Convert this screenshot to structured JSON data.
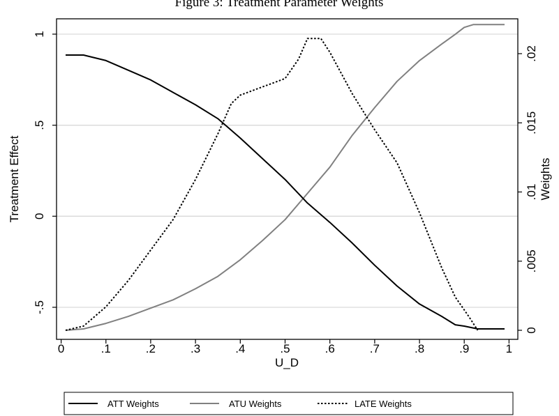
{
  "chart_data": {
    "type": "line",
    "title": "Figure 3: Treatment Parameter Weights",
    "xlabel": "U_D",
    "ylabel_left": "Treatment Effect",
    "ylabel_right": "Weights",
    "xlim": [
      0,
      1
    ],
    "ylim_left": [
      -0.62,
      1.05
    ],
    "ylim_right": [
      0,
      0.0225
    ],
    "x_ticks": [
      0,
      0.1,
      0.2,
      0.3,
      0.4,
      0.5,
      0.6,
      0.7,
      0.8,
      0.9,
      1
    ],
    "x_tick_labels": [
      "0",
      ".1",
      ".2",
      ".3",
      ".4",
      ".5",
      ".6",
      ".7",
      ".8",
      ".9",
      "1"
    ],
    "y_left_ticks": [
      -0.5,
      0,
      0.5,
      1
    ],
    "y_left_tick_labels": [
      "-.5",
      "0",
      ".5",
      "1"
    ],
    "y_right_ticks": [
      0,
      0.005,
      0.01,
      0.015,
      0.02
    ],
    "y_right_tick_labels": [
      "0",
      ".005",
      ".01",
      ".015",
      ".02"
    ],
    "grid": true,
    "legend_position": "bottom",
    "series": [
      {
        "name": "ATT Weights",
        "axis": "right",
        "color": "#000000",
        "dash": "solid",
        "x": [
          0.01,
          0.05,
          0.1,
          0.15,
          0.2,
          0.25,
          0.3,
          0.35,
          0.4,
          0.45,
          0.5,
          0.55,
          0.6,
          0.65,
          0.7,
          0.75,
          0.8,
          0.85,
          0.88,
          0.9,
          0.93,
          0.95,
          0.99
        ],
        "y": [
          0.0199,
          0.0199,
          0.0195,
          0.0188,
          0.0181,
          0.0172,
          0.0163,
          0.0153,
          0.0139,
          0.0124,
          0.0109,
          0.0092,
          0.0078,
          0.0063,
          0.0047,
          0.0032,
          0.0019,
          0.001,
          0.0004,
          0.0003,
          0.0001,
          0.0001,
          0.0001
        ]
      },
      {
        "name": "ATU Weights",
        "axis": "right",
        "color": "#808080",
        "dash": "solid",
        "x": [
          0.01,
          0.05,
          0.1,
          0.15,
          0.2,
          0.25,
          0.3,
          0.35,
          0.4,
          0.45,
          0.5,
          0.55,
          0.6,
          0.65,
          0.7,
          0.75,
          0.8,
          0.85,
          0.88,
          0.9,
          0.92,
          0.95,
          0.99
        ],
        "y": [
          0.0,
          0.0001,
          0.0005,
          0.001,
          0.0016,
          0.0022,
          0.003,
          0.0039,
          0.0051,
          0.0065,
          0.008,
          0.0099,
          0.0118,
          0.0141,
          0.0161,
          0.018,
          0.0195,
          0.0207,
          0.0214,
          0.0219,
          0.0221,
          0.0221,
          0.0221
        ]
      },
      {
        "name": "LATE Weights",
        "axis": "right",
        "color": "#000000",
        "dash": "dotted",
        "x": [
          0.01,
          0.05,
          0.1,
          0.15,
          0.2,
          0.25,
          0.3,
          0.35,
          0.38,
          0.4,
          0.45,
          0.5,
          0.53,
          0.55,
          0.58,
          0.6,
          0.65,
          0.7,
          0.75,
          0.8,
          0.85,
          0.88,
          0.91,
          0.93
        ],
        "y": [
          0.0,
          0.0003,
          0.0017,
          0.0036,
          0.0058,
          0.008,
          0.0109,
          0.0142,
          0.0164,
          0.017,
          0.0176,
          0.0182,
          0.0196,
          0.0211,
          0.0211,
          0.0201,
          0.0171,
          0.0145,
          0.0121,
          0.0085,
          0.0045,
          0.0024,
          0.001,
          0.0
        ]
      }
    ]
  }
}
